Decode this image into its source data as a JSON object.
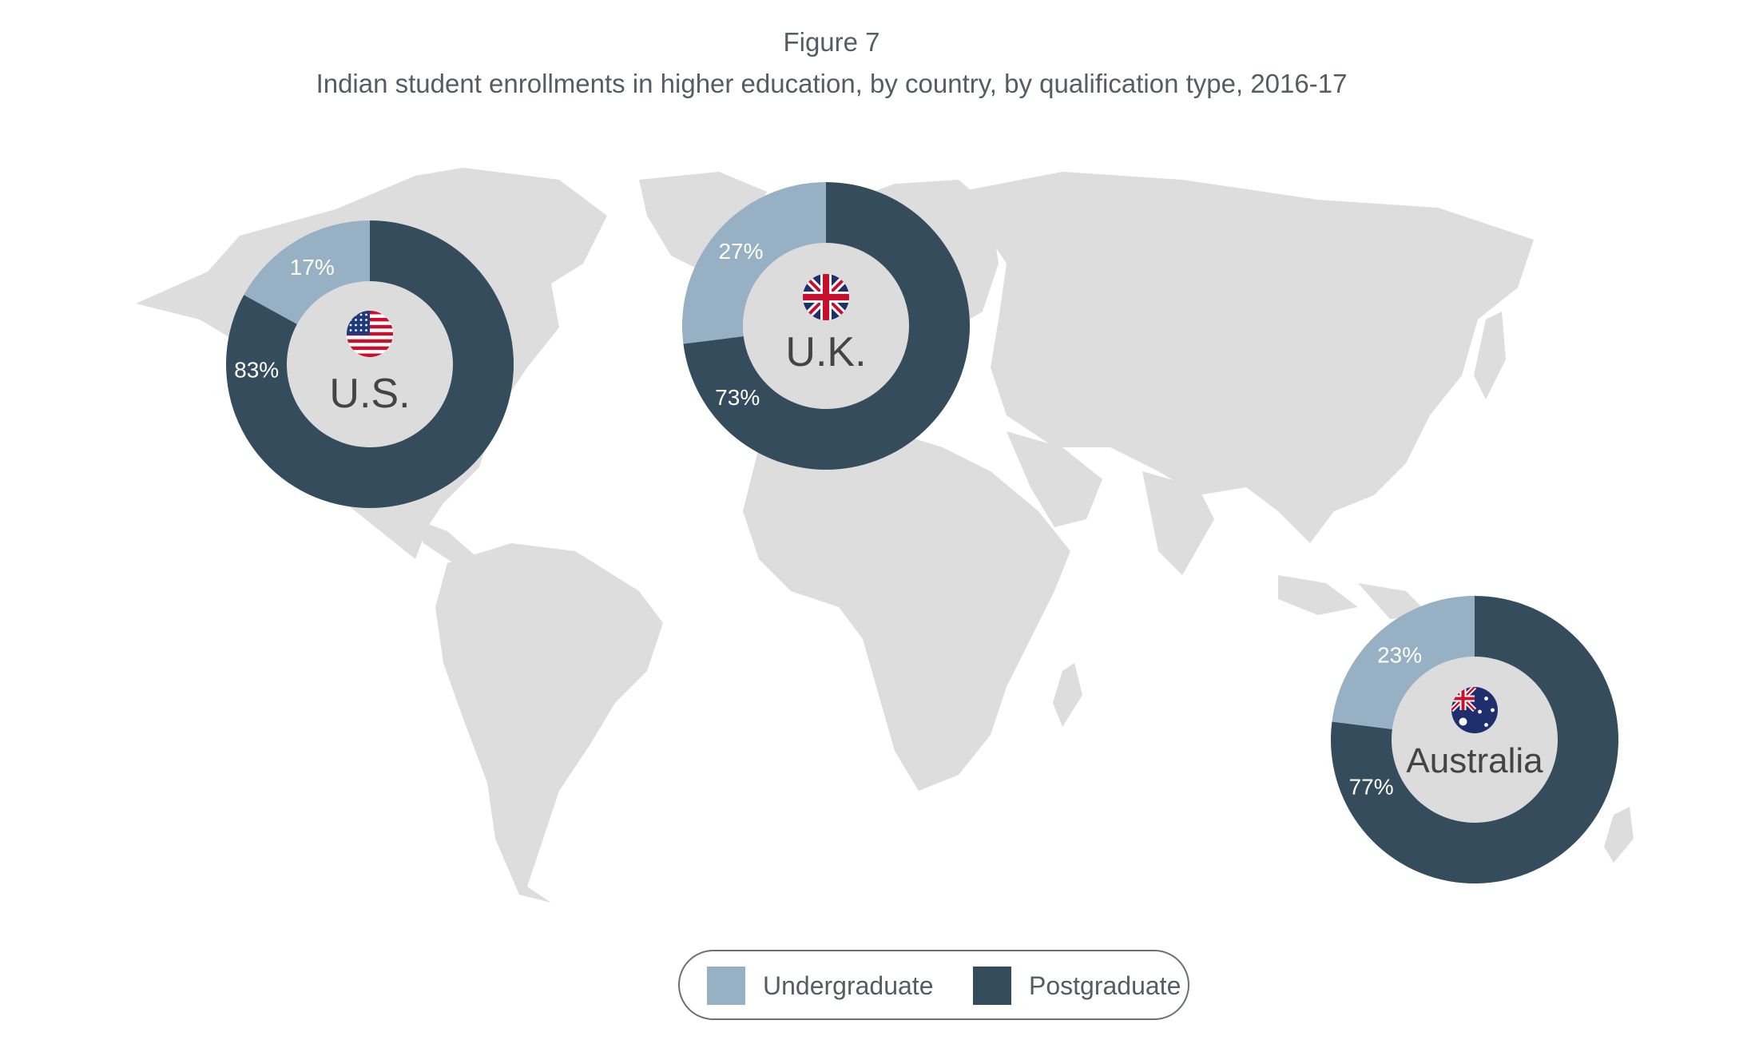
{
  "figure_label": "Figure 7",
  "title": "Indian student enrollments in higher education, by country, by qualification type, 2016-17",
  "colors": {
    "undergraduate": "#97b0c4",
    "postgraduate": "#344c5c",
    "map_land": "#dddddd",
    "center_disc": "#dcdcdc",
    "label_text": "#444444",
    "pct_text": "#ffffff"
  },
  "legend": [
    {
      "label": "Undergraduate",
      "color": "#97b0c4"
    },
    {
      "label": "Postgraduate",
      "color": "#344c5c"
    }
  ],
  "chart_data": [
    {
      "type": "pie",
      "country": "U.S.",
      "flag": "us-flag-icon",
      "categories": [
        "Undergraduate",
        "Postgraduate"
      ],
      "values": [
        17,
        83
      ],
      "labels": [
        "17%",
        "83%"
      ]
    },
    {
      "type": "pie",
      "country": "U.K.",
      "flag": "uk-flag-icon",
      "categories": [
        "Undergraduate",
        "Postgraduate"
      ],
      "values": [
        27,
        73
      ],
      "labels": [
        "27%",
        "73%"
      ]
    },
    {
      "type": "pie",
      "country": "Australia",
      "flag": "australia-flag-icon",
      "categories": [
        "Undergraduate",
        "Postgraduate"
      ],
      "values": [
        23,
        77
      ],
      "labels": [
        "23%",
        "77%"
      ]
    }
  ]
}
